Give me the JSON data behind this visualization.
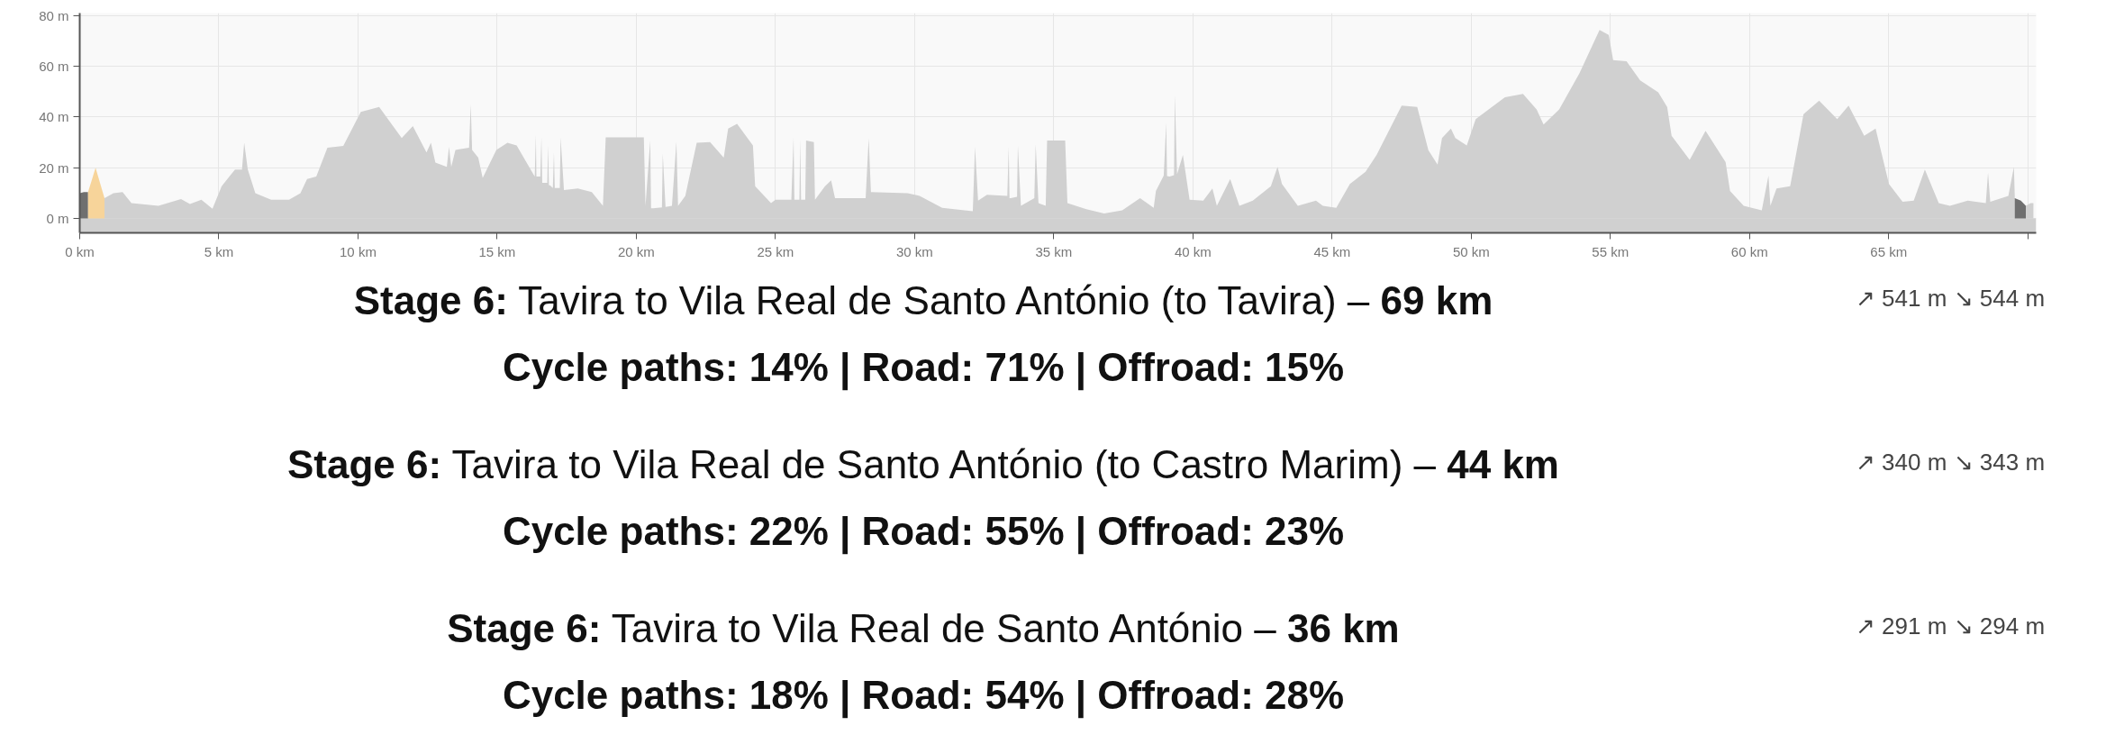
{
  "chart_data": {
    "type": "area",
    "xlim": [
      0,
      70.3
    ],
    "ylim": [
      -5.7,
      81
    ],
    "xticks": [
      {
        "value": 0,
        "label": "0 km"
      },
      {
        "value": 5,
        "label": "5 km"
      },
      {
        "value": 10,
        "label": "10 km"
      },
      {
        "value": 15,
        "label": "15 km"
      },
      {
        "value": 20,
        "label": "20 km"
      },
      {
        "value": 25,
        "label": "25 km"
      },
      {
        "value": 30,
        "label": "30 km"
      },
      {
        "value": 35,
        "label": "35 km"
      },
      {
        "value": 40,
        "label": "40 km"
      },
      {
        "value": 45,
        "label": "45 km"
      },
      {
        "value": 50,
        "label": "50 km"
      },
      {
        "value": 55,
        "label": "55 km"
      },
      {
        "value": 60,
        "label": "60 km"
      },
      {
        "value": 65,
        "label": "65 km"
      },
      {
        "value": 70,
        "label": null
      }
    ],
    "yticks": [
      {
        "value": 0,
        "label": "0 m"
      },
      {
        "value": 20,
        "label": "20 m"
      },
      {
        "value": 40,
        "label": "40 m"
      },
      {
        "value": 60,
        "label": "60 m"
      },
      {
        "value": 80,
        "label": "80 m"
      }
    ],
    "grid": true,
    "bands": [
      {
        "axis": "y",
        "from": -5.7,
        "to": 0,
        "color": "#d0d0d0"
      }
    ],
    "series": [
      {
        "color": "#d0d0d0",
        "x": [
          0.3,
          0.89,
          1.21,
          1.54,
          1.86,
          2.83,
          3.64,
          3.96,
          4.37,
          4.77,
          5.1,
          5.58,
          5.83,
          5.91,
          6.04,
          6.31,
          6.88,
          7.52,
          7.93,
          8.17,
          8.5,
          8.9,
          9.47,
          10.1,
          10.76,
          11.57,
          11.97,
          12.46,
          12.62,
          12.78,
          13.19,
          13.27,
          13.35,
          13.5,
          13.99,
          14.05,
          14.1,
          14.32,
          14.48,
          14.97,
          15.37,
          15.7,
          16.35,
          16.39,
          16.41,
          16.46,
          16.55,
          16.59,
          16.62,
          16.66,
          16.8,
          16.83,
          16.86,
          16.9,
          17.0,
          17.04,
          17.07,
          17.1,
          17.25,
          17.28,
          17.4,
          17.9,
          18.4,
          18.8,
          18.9,
          20.27,
          20.33,
          20.5,
          20.53,
          20.6,
          20.92,
          20.95,
          21.05,
          21.28,
          21.44,
          21.5,
          21.76,
          22.17,
          22.65,
          23.14,
          23.3,
          23.62,
          24.19,
          24.27,
          24.84,
          25.0,
          25.57,
          25.65,
          25.68,
          25.72,
          25.86,
          25.89,
          25.92,
          25.96,
          26.07,
          26.1,
          26.38,
          26.42,
          26.78,
          27.0,
          27.14,
          28.24,
          28.35,
          28.43,
          29.75,
          30.18,
          30.99,
          32.09,
          32.17,
          32.28,
          32.6,
          33.33,
          33.38,
          33.41,
          33.45,
          33.68,
          33.71,
          33.82,
          34.3,
          34.35,
          34.45,
          34.71,
          34.76,
          35.41,
          35.49,
          36.17,
          36.81,
          37.46,
          38.1,
          38.59,
          38.67,
          38.95,
          39.04,
          39.07,
          39.16,
          39.32,
          39.35,
          39.43,
          39.64,
          39.88,
          40.37,
          40.7,
          40.86,
          41.34,
          41.67,
          42.15,
          42.8,
          43.04,
          43.2,
          43.77,
          44.42,
          44.67,
          45.15,
          45.64,
          46.2,
          46.6,
          47.5,
          48.06,
          48.46,
          48.79,
          48.95,
          49.27,
          49.43,
          49.84,
          50.16,
          50.81,
          51.21,
          51.86,
          52.35,
          52.6,
          53.16,
          53.89,
          54.61,
          54.94,
          55.1,
          55.58,
          56.07,
          56.72,
          57.04,
          57.2,
          57.85,
          58.42,
          59.14,
          59.3,
          59.79,
          60.44,
          60.68,
          60.75,
          60.97,
          61.46,
          61.94,
          62.5,
          63.15,
          63.56,
          64.12,
          64.53,
          65.01,
          65.5,
          65.9,
          66.3,
          66.8,
          67.2,
          67.84,
          68.49,
          68.57,
          68.65,
          69.3,
          69.5,
          69.53
        ],
        "values": [
          10.4,
          8,
          9.9,
          10.4,
          6,
          5,
          7.6,
          5.7,
          7.4,
          3.8,
          12.7,
          19.3,
          19.3,
          29.8,
          19.3,
          9.9,
          7.4,
          7.4,
          9.9,
          15.5,
          16.5,
          27.9,
          28.6,
          42,
          44,
          31.7,
          36.4,
          26,
          29.8,
          22,
          20.3,
          28.2,
          20.3,
          27,
          27.9,
          45,
          27,
          24,
          16,
          27,
          29.8,
          28.8,
          16.5,
          33,
          16.5,
          16.5,
          16.5,
          32,
          14,
          14,
          14,
          28.8,
          13,
          13,
          12,
          26,
          12,
          12,
          12,
          32,
          11.2,
          11.8,
          10.4,
          5,
          32,
          32,
          5,
          30.7,
          4,
          4,
          4.3,
          25.6,
          4.5,
          5,
          30.3,
          5,
          8.9,
          29.8,
          30.1,
          24,
          35.4,
          37.3,
          28.8,
          12.7,
          6,
          7.4,
          7.4,
          32,
          7.4,
          7.4,
          7.4,
          31.3,
          7.4,
          7.4,
          7.4,
          30.7,
          30.1,
          7.4,
          12.7,
          15,
          8,
          8,
          31.7,
          10.4,
          9.9,
          8.9,
          4.2,
          2.8,
          28.2,
          7,
          9.3,
          8.9,
          28.2,
          8,
          8,
          8.5,
          28.8,
          5,
          8,
          29.2,
          6,
          5,
          30.7,
          30.7,
          6,
          3.6,
          1.9,
          3.2,
          8,
          4.2,
          10.8,
          16.9,
          37.7,
          16.7,
          16.5,
          17,
          48.7,
          17.4,
          25,
          7.4,
          7,
          11.8,
          5,
          15.5,
          5,
          7,
          12.7,
          20.3,
          13.6,
          5,
          7,
          5,
          4.2,
          13.6,
          18.4,
          25,
          44.5,
          44,
          26.9,
          21.2,
          31.7,
          35.4,
          31.7,
          28.8,
          39.2,
          44.5,
          47.8,
          49.1,
          43,
          37,
          43,
          57.3,
          74.3,
          72.4,
          62.4,
          62,
          54.4,
          49.7,
          44,
          32.6,
          23.1,
          34.5,
          22.2,
          10.8,
          5,
          3.2,
          16.9,
          5,
          11.8,
          12.7,
          41.1,
          46.4,
          39.2,
          44.5,
          32.6,
          35.4,
          13.6,
          6.6,
          7,
          19.3,
          6,
          5,
          7,
          6,
          18,
          6.6,
          8.9,
          20.3,
          9
        ]
      },
      {
        "color": "#6f6f6f",
        "x": [
          0,
          0.15,
          0.3
        ],
        "values": [
          9.9,
          10.4,
          10.4
        ]
      },
      {
        "color": "#f7d49a",
        "x": [
          0.3,
          0.57,
          0.89
        ],
        "values": [
          10.4,
          20,
          8
        ]
      },
      {
        "color": "#6f6f6f",
        "x": [
          69.53,
          69.75,
          69.93
        ],
        "values": [
          8,
          7,
          5
        ]
      },
      {
        "color": "#d0d0d0",
        "x": [
          69.93,
          70.1,
          70.2
        ],
        "values": [
          5,
          6,
          6
        ]
      }
    ],
    "annotations": [
      "Stage 6: Tavira to Vila Real de Santo António (to Tavira) – 69 km",
      "↗ 541 m ↘ 544 m",
      "Cycle paths: 14% | Road: 71% | Offroad: 15%",
      "Stage 6: Tavira to Vila Real de Santo António (to Castro Marim) – 44 km",
      "↗ 340 m ↘ 343 m",
      "Cycle paths: 22% | Road: 55% | Offroad: 23%",
      "Stage 6: Tavira to Vila Real de Santo António – 36 km",
      "↗ 291 m ↘ 294 m",
      "Cycle paths: 18% | Road: 54% | Offroad: 28%"
    ]
  }
}
